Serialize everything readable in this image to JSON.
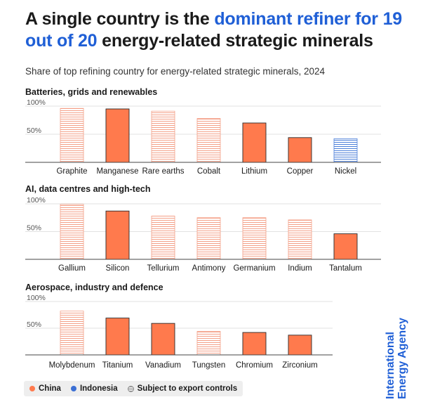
{
  "headline": {
    "part1": "A single country is the ",
    "highlight": "dominant refiner for 19 out of 20",
    "part2": " energy-related strategic minerals"
  },
  "subtitle": "Share of top refining country for energy-related strategic minerals, 2024",
  "colors": {
    "china": "#ff7a4d",
    "indonesia": "#3b6fd4",
    "hatch_china": "#f4a088",
    "hatch_indonesia": "#4c7fd9",
    "highlight": "#1f5fd6"
  },
  "legend": {
    "china": "China",
    "indonesia": "Indonesia",
    "export_controls": "Subject to export controls"
  },
  "brand": "International Energy Agency",
  "chart_data": [
    {
      "type": "bar",
      "title": "Batteries, grids and renewables",
      "ytick_labels": [
        "100%",
        "50%"
      ],
      "ylim": [
        0,
        100
      ],
      "categories": [
        "Graphite",
        "Manganese",
        "Rare earths",
        "Cobalt",
        "Lithium",
        "Copper",
        "Nickel"
      ],
      "values": [
        96,
        95,
        91,
        78,
        70,
        44,
        42
      ],
      "country": [
        "China",
        "China",
        "China",
        "China",
        "China",
        "China",
        "Indonesia"
      ],
      "export_controls": [
        true,
        false,
        true,
        true,
        false,
        false,
        true
      ]
    },
    {
      "type": "bar",
      "title": "AI, data centres and high-tech",
      "ytick_labels": [
        "100%",
        "50%"
      ],
      "ylim": [
        0,
        100
      ],
      "categories": [
        "Gallium",
        "Silicon",
        "Tellurium",
        "Antimony",
        "Germanium",
        "Indium",
        "Tantalum"
      ],
      "values": [
        99,
        87,
        78,
        75,
        75,
        71,
        46
      ],
      "country": [
        "China",
        "China",
        "China",
        "China",
        "China",
        "China",
        "China"
      ],
      "export_controls": [
        true,
        false,
        true,
        true,
        true,
        true,
        false
      ]
    },
    {
      "type": "bar",
      "title": "Aerospace, industry and defence",
      "ytick_labels": [
        "100%",
        "50%"
      ],
      "ylim": [
        0,
        100
      ],
      "categories": [
        "Molybdenum",
        "Titanium",
        "Vanadium",
        "Tungsten",
        "Chromium",
        "Zirconium"
      ],
      "values": [
        82,
        69,
        59,
        44,
        42,
        37
      ],
      "country": [
        "China",
        "China",
        "China",
        "China",
        "China",
        "China"
      ],
      "export_controls": [
        true,
        false,
        false,
        true,
        false,
        false
      ]
    }
  ]
}
